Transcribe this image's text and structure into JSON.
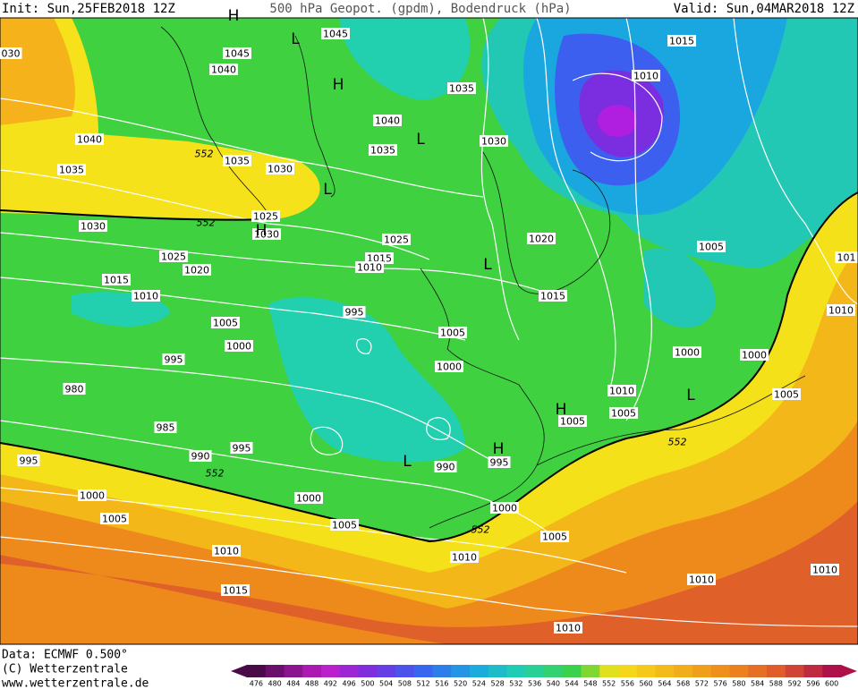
{
  "header": {
    "init": "Init:  Sun,25FEB2018  12Z",
    "title": "500 hPa Geopot. (gpdm), Bodendruck (hPa)",
    "valid": "Valid:  Sun,04MAR2018  12Z"
  },
  "footer": {
    "data": "Data: ECMWF   0.500°",
    "copyright": "(C) Wetterzentrale",
    "url": "www.wetterzentrale.de"
  },
  "isobar_labels": [
    "1045",
    "1045",
    "1040",
    "1035",
    "1040",
    "1040",
    "1035",
    "1030",
    "1035",
    "552",
    "1030",
    "1035",
    "1025",
    "552",
    "1030",
    "1030",
    "1025",
    "1020",
    "1025",
    "1015",
    "1010",
    "1020",
    "1015",
    "1010",
    "1015",
    "995",
    "1005",
    "1005",
    "1005",
    "1000",
    "995",
    "1000",
    "1000",
    "1000",
    "980",
    "1010",
    "1005",
    "1005",
    "1005",
    "985",
    "552",
    "995",
    "990",
    "995",
    "990",
    "995",
    "552",
    "1000",
    "1000",
    "1000",
    "1005",
    "1005",
    "552",
    "1005",
    "1010",
    "1010",
    "1015",
    "1010",
    "1010",
    "1010",
    "1015",
    "1010",
    "030",
    "1010",
    "101"
  ],
  "pressure_centers": [
    "H",
    "L",
    "H",
    "L",
    "L",
    "H",
    "L",
    "H",
    "L",
    "H",
    "L"
  ],
  "colorbar": {
    "labels": [
      476,
      480,
      484,
      488,
      492,
      496,
      500,
      504,
      508,
      512,
      516,
      520,
      524,
      528,
      532,
      536,
      540,
      544,
      548,
      552,
      556,
      560,
      564,
      568,
      572,
      576,
      580,
      584,
      588,
      592,
      596,
      600
    ]
  }
}
